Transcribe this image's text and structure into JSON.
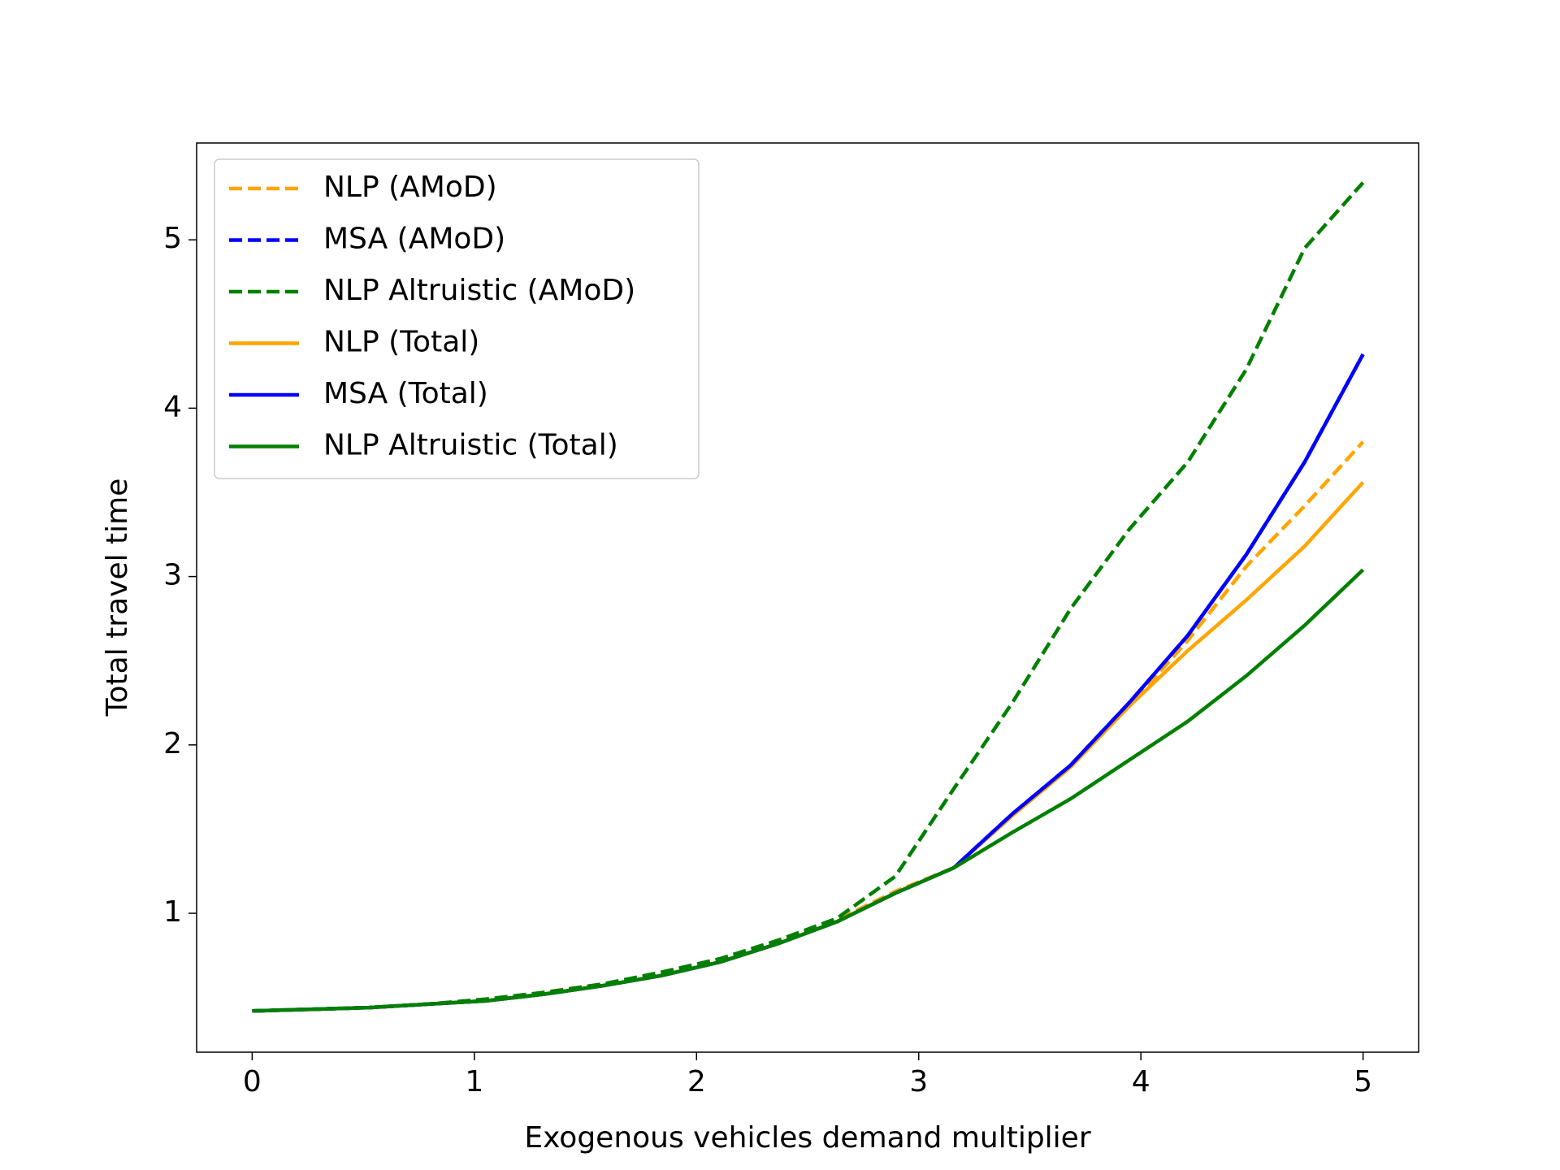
{
  "chart_data": {
    "type": "line",
    "xlabel": "Exogenous vehicles demand multiplier",
    "ylabel": "Total travel time",
    "x": [
      0,
      0.263,
      0.526,
      0.789,
      1.053,
      1.316,
      1.579,
      1.842,
      2.105,
      2.368,
      2.632,
      2.895,
      3.158,
      3.421,
      3.684,
      3.947,
      4.211,
      4.474,
      4.737,
      5.0
    ],
    "series": [
      {
        "name": "NLP (AMoD)",
        "color": "#ffa500",
        "dashed": true,
        "values": [
          0.42,
          0.43,
          0.44,
          0.46,
          0.49,
          0.53,
          0.58,
          0.64,
          0.72,
          0.83,
          0.96,
          1.13,
          1.27,
          1.58,
          1.87,
          2.23,
          2.62,
          3.06,
          3.42,
          3.8
        ]
      },
      {
        "name": "MSA (AMoD)",
        "color": "#0000ff",
        "dashed": true,
        "values": [
          0.42,
          0.43,
          0.44,
          0.46,
          0.48,
          0.52,
          0.57,
          0.63,
          0.71,
          0.82,
          0.95,
          1.12,
          1.27,
          1.59,
          1.88,
          2.25,
          2.65,
          3.13,
          3.68,
          4.32
        ]
      },
      {
        "name": "NLP Altruistic (AMoD)",
        "color": "#008000",
        "dashed": true,
        "values": [
          0.42,
          0.43,
          0.44,
          0.46,
          0.49,
          0.53,
          0.58,
          0.65,
          0.73,
          0.84,
          0.97,
          1.22,
          1.74,
          2.25,
          2.81,
          3.28,
          3.68,
          4.23,
          4.95,
          5.34
        ]
      },
      {
        "name": "NLP (Total)",
        "color": "#ffa500",
        "dashed": false,
        "values": [
          0.42,
          0.43,
          0.44,
          0.46,
          0.48,
          0.52,
          0.57,
          0.63,
          0.71,
          0.82,
          0.95,
          1.12,
          1.27,
          1.58,
          1.87,
          2.23,
          2.56,
          2.86,
          3.18,
          3.56
        ]
      },
      {
        "name": "MSA (Total)",
        "color": "#0000ff",
        "dashed": false,
        "values": [
          0.42,
          0.43,
          0.44,
          0.46,
          0.48,
          0.52,
          0.57,
          0.63,
          0.71,
          0.82,
          0.95,
          1.12,
          1.27,
          1.59,
          1.88,
          2.25,
          2.65,
          3.13,
          3.68,
          4.32
        ]
      },
      {
        "name": "NLP Altruistic (Total)",
        "color": "#008000",
        "dashed": false,
        "values": [
          0.42,
          0.43,
          0.44,
          0.46,
          0.48,
          0.52,
          0.57,
          0.63,
          0.71,
          0.82,
          0.95,
          1.12,
          1.27,
          1.48,
          1.68,
          1.91,
          2.14,
          2.41,
          2.71,
          3.04
        ]
      }
    ],
    "xlim": [
      -0.25,
      5.25
    ],
    "xticks": [
      0,
      1,
      2,
      3,
      4,
      5
    ],
    "ylim": [
      0.175,
      5.575
    ],
    "yticks": [
      1,
      2,
      3,
      4,
      5
    ],
    "legend": "upper left",
    "grid": false
  }
}
